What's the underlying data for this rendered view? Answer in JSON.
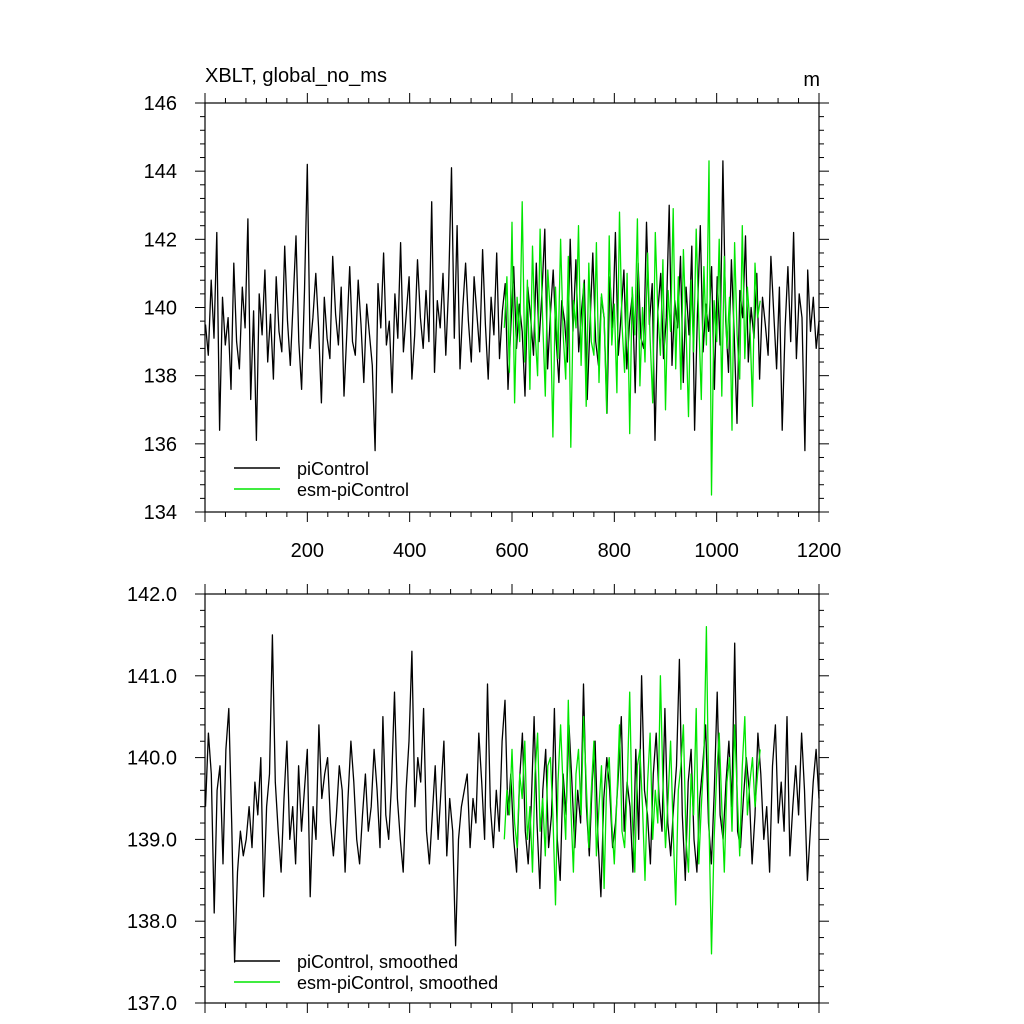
{
  "chart_data": [
    {
      "type": "line",
      "title": "XBLT, global_no_ms",
      "units": "m",
      "xlabel": "",
      "ylabel": "",
      "xlim": [
        0,
        1200
      ],
      "ylim": [
        134,
        146
      ],
      "x_ticks": [
        200,
        400,
        600,
        800,
        1000,
        1200
      ],
      "y_ticks": [
        134,
        136,
        138,
        140,
        142,
        144,
        146
      ],
      "y_tick_labels": [
        "134",
        "136",
        "138",
        "140",
        "142",
        "144",
        "146"
      ],
      "grid": false,
      "legend_position": "bottom-left",
      "series": [
        {
          "name": "piControl",
          "color": "#000000",
          "x_start": 1,
          "x_end": 1200,
          "x_step": 5,
          "values": [
            139.5,
            138.6,
            140.8,
            139.1,
            142.2,
            136.4,
            140.3,
            138.9,
            139.7,
            137.6,
            141.3,
            139.0,
            138.2,
            140.6,
            139.4,
            142.6,
            137.3,
            139.9,
            136.1,
            140.4,
            139.2,
            141.1,
            138.4,
            139.8,
            137.9,
            140.9,
            139.3,
            138.7,
            141.8,
            139.6,
            138.3,
            140.2,
            142.1,
            139.0,
            137.6,
            140.5,
            144.2,
            138.8,
            139.7,
            141.0,
            139.4,
            137.2,
            140.3,
            139.1,
            138.5,
            141.5,
            139.8,
            138.9,
            140.6,
            137.4,
            139.3,
            141.2,
            139.0,
            138.6,
            140.8,
            139.5,
            137.8,
            140.1,
            139.2,
            138.3,
            135.8,
            140.7,
            139.4,
            141.6,
            138.9,
            139.6,
            137.5,
            140.4,
            139.1,
            141.9,
            138.7,
            139.8,
            140.9,
            137.9,
            139.2,
            141.4,
            139.7,
            138.8,
            140.5,
            139.0,
            143.1,
            138.1,
            140.2,
            139.4,
            141.0,
            138.6,
            140.6,
            144.1,
            139.1,
            142.4,
            138.2,
            140.0,
            141.3,
            139.6,
            138.4,
            140.9,
            139.8,
            138.7,
            141.7,
            139.5,
            137.9,
            140.3,
            139.2,
            141.6,
            138.5,
            139.9,
            140.7,
            137.6,
            139.4,
            141.2,
            138.8,
            140.1,
            139.3,
            137.4,
            140.6,
            139.7,
            138.6,
            141.3,
            139.0,
            140.4,
            142.3,
            138.2,
            139.8,
            141.1,
            139.1,
            137.8,
            140.2,
            139.6,
            138.4,
            142.0,
            139.3,
            141.4,
            138.7,
            139.9,
            140.8,
            137.3,
            139.5,
            141.6,
            139.0,
            138.3,
            140.3,
            139.7,
            136.9,
            140.9,
            139.4,
            142.2,
            138.6,
            139.8,
            141.1,
            138.2,
            139.6,
            140.4,
            137.5,
            141.3,
            139.1,
            138.8,
            142.5,
            139.5,
            140.7,
            136.1,
            139.9,
            141.0,
            138.5,
            139.7,
            143.0,
            138.3,
            140.2,
            139.4,
            141.5,
            137.8,
            140.6,
            139.2,
            141.8,
            136.4,
            139.8,
            142.4,
            138.7,
            140.1,
            139.3,
            141.2,
            137.6,
            140.9,
            138.9,
            144.3,
            139.6,
            138.1,
            141.4,
            139.2,
            136.6,
            140.5,
            139.7,
            142.1,
            138.4,
            140.0,
            139.1,
            141.0,
            137.9,
            140.3,
            139.5,
            138.6,
            141.5,
            139.8,
            138.2,
            140.6,
            136.4,
            139.4,
            141.2,
            139.0,
            142.2,
            138.5,
            140.4,
            139.7,
            135.8,
            141.1,
            139.3,
            140.3,
            138.8,
            139.6
          ]
        },
        {
          "name": "esm-piControl",
          "color": "#00e600",
          "x_start": 585,
          "x_end": 1085,
          "x_step": 5,
          "values": [
            139.4,
            140.9,
            138.1,
            142.5,
            137.2,
            140.3,
            139.0,
            143.1,
            138.4,
            140.8,
            137.6,
            141.8,
            139.3,
            138.0,
            142.3,
            139.6,
            137.4,
            141.1,
            139.8,
            136.2,
            140.6,
            138.5,
            142.0,
            139.2,
            137.9,
            141.5,
            135.9,
            140.2,
            139.4,
            142.4,
            138.3,
            140.7,
            137.1,
            141.3,
            139.0,
            138.6,
            141.9,
            137.8,
            140.4,
            139.7,
            136.9,
            142.1,
            138.9,
            140.1,
            137.5,
            142.8,
            139.5,
            138.1,
            141.0,
            136.3,
            140.6,
            139.2,
            142.6,
            137.7,
            140.0,
            138.4,
            141.6,
            139.1,
            137.2,
            142.2,
            139.9,
            138.6,
            141.4,
            137.0,
            140.5,
            139.3,
            142.9,
            138.2,
            140.9,
            137.6,
            141.7,
            139.4,
            136.8,
            140.8,
            138.7,
            142.3,
            139.6,
            137.3,
            141.2,
            138.9,
            144.3,
            134.5,
            140.2,
            139.0,
            142.0,
            137.4,
            141.5,
            138.8,
            140.3,
            136.4,
            141.9,
            139.2,
            137.9,
            142.4,
            138.5,
            140.6,
            139.5,
            137.1,
            141.3,
            139.7,
            140.2
          ]
        }
      ]
    },
    {
      "type": "line",
      "title": "",
      "xlabel": "",
      "ylabel": "",
      "xlim": [
        0,
        1200
      ],
      "ylim": [
        137.0,
        142.0
      ],
      "x_ticks": [
        200,
        400,
        600,
        800,
        1000,
        1200
      ],
      "y_ticks": [
        137.0,
        138.0,
        139.0,
        140.0,
        141.0,
        142.0
      ],
      "y_tick_labels": [
        "137.0",
        "138.0",
        "139.0",
        "140.0",
        "141.0",
        "142.0"
      ],
      "grid": false,
      "legend_position": "bottom-left",
      "series": [
        {
          "name": "piControl, smoothed",
          "color": "#000000",
          "x_start": 1,
          "x_end": 1200,
          "x_step": 5,
          "values": [
            139.4,
            140.3,
            139.8,
            138.1,
            139.6,
            139.9,
            138.7,
            140.1,
            140.6,
            139.2,
            137.5,
            138.6,
            139.1,
            138.8,
            139.0,
            139.4,
            138.9,
            139.7,
            139.3,
            140.0,
            138.3,
            139.4,
            139.8,
            141.5,
            139.7,
            139.1,
            138.6,
            139.5,
            140.2,
            139.0,
            139.4,
            138.7,
            139.9,
            139.1,
            139.6,
            140.1,
            138.3,
            139.4,
            139.0,
            140.4,
            139.5,
            139.8,
            140.0,
            139.2,
            138.8,
            139.3,
            139.9,
            139.6,
            138.6,
            139.5,
            140.2,
            139.7,
            139.0,
            138.7,
            139.3,
            139.8,
            139.1,
            139.4,
            140.1,
            139.6,
            138.9,
            140.5,
            139.3,
            139.0,
            139.7,
            140.8,
            139.5,
            139.0,
            138.6,
            139.6,
            140.2,
            141.3,
            139.4,
            140.0,
            139.7,
            140.6,
            139.1,
            138.7,
            139.3,
            139.9,
            139.0,
            139.6,
            140.2,
            138.8,
            139.5,
            139.1,
            137.7,
            139.0,
            139.4,
            139.6,
            139.8,
            138.9,
            139.5,
            139.2,
            140.3,
            139.7,
            139.0,
            140.9,
            139.4,
            138.9,
            139.6,
            139.1,
            140.2,
            140.7,
            139.3,
            139.8,
            139.0,
            138.6,
            139.7,
            140.3,
            139.1,
            138.7,
            139.4,
            140.5,
            139.2,
            138.4,
            139.6,
            140.1,
            138.9,
            139.3,
            140.6,
            139.0,
            138.5,
            139.8,
            139.3,
            140.4,
            139.7,
            138.9,
            139.6,
            139.2,
            140.9,
            139.4,
            138.8,
            139.7,
            140.2,
            139.0,
            138.3,
            139.5,
            140.0,
            139.6,
            138.9,
            139.2,
            139.8,
            140.5,
            139.1,
            139.7,
            139.4,
            138.6,
            140.1,
            139.0,
            141.0,
            139.6,
            139.3,
            138.7,
            139.8,
            140.3,
            139.5,
            139.1,
            140.6,
            139.2,
            138.8,
            139.4,
            139.9,
            141.2,
            139.3,
            138.5,
            139.7,
            140.1,
            139.0,
            138.6,
            139.5,
            139.9,
            140.4,
            139.2,
            138.7,
            139.6,
            140.8,
            139.3,
            139.0,
            139.7,
            140.2,
            139.4,
            141.4,
            139.1,
            138.9,
            139.5,
            140.0,
            139.6,
            138.7,
            139.3,
            140.3,
            139.8,
            139.0,
            139.4,
            138.6,
            139.9,
            140.4,
            139.2,
            139.7,
            139.1,
            140.5,
            138.8,
            139.4,
            139.9,
            139.3,
            140.3,
            139.6,
            138.5,
            139.1,
            139.7,
            140.1,
            139.5
          ]
        },
        {
          "name": "esm-piControl, smoothed",
          "color": "#00e600",
          "x_start": 585,
          "x_end": 1085,
          "x_step": 5,
          "values": [
            139.0,
            139.6,
            139.3,
            140.1,
            139.2,
            138.9,
            139.8,
            139.5,
            140.2,
            139.0,
            139.4,
            138.6,
            139.8,
            140.3,
            139.1,
            139.5,
            138.8,
            139.9,
            140.0,
            139.3,
            138.2,
            139.7,
            140.4,
            139.6,
            139.0,
            140.7,
            139.4,
            138.6,
            139.8,
            140.1,
            139.3,
            140.5,
            139.7,
            138.9,
            139.6,
            140.2,
            138.8,
            139.4,
            139.9,
            138.4,
            139.7,
            140.0,
            139.2,
            138.7,
            139.5,
            140.4,
            139.1,
            138.9,
            139.6,
            140.8,
            139.3,
            138.6,
            139.9,
            140.1,
            139.4,
            138.5,
            139.7,
            140.3,
            139.0,
            139.6,
            139.2,
            141.0,
            139.7,
            138.9,
            139.5,
            140.2,
            139.1,
            138.2,
            139.6,
            139.9,
            140.4,
            139.0,
            138.6,
            139.8,
            139.3,
            140.6,
            138.7,
            139.4,
            140.0,
            141.6,
            139.2,
            137.6,
            139.0,
            139.8,
            140.3,
            139.4,
            138.6,
            139.7,
            140.0,
            139.1,
            140.4,
            139.6,
            138.8,
            139.9,
            140.5,
            139.3,
            139.7,
            140.0,
            139.4,
            139.8,
            140.1
          ]
        }
      ]
    }
  ]
}
